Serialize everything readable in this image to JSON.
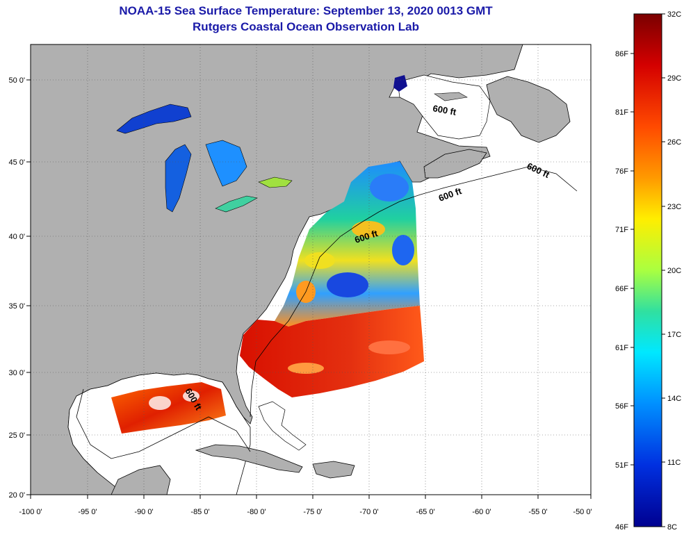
{
  "header": {
    "title": "NOAA-15 Sea Surface Temperature:  September 13, 2020 0013 GMT",
    "subtitle": "Rutgers Coastal Ocean Observation Lab"
  },
  "map": {
    "lon_range": [
      -100,
      -50
    ],
    "lat_range": [
      20,
      52
    ],
    "lon_ticks": [
      "-100 0'",
      "-95 0'",
      "-90 0'",
      "-85 0'",
      "-80 0'",
      "-75 0'",
      "-70 0'",
      "-65 0'",
      "-60 0'",
      "-55 0'",
      "-50 0'"
    ],
    "lat_ticks": [
      "20 0'",
      "25 0'",
      "30 0'",
      "35 0'",
      "40 0'",
      "45 0'",
      "50 0'"
    ],
    "contour_labels": [
      "600 ft",
      "600 ft",
      "600 ft",
      "600 ft",
      "600 ft"
    ],
    "colors": {
      "land": "#b0b0b0",
      "ocean": "#ffffff",
      "grid": "#333333"
    }
  },
  "colorbar": {
    "celsius_labels": [
      "32C",
      "29C",
      "26C",
      "23C",
      "20C",
      "17C",
      "14C",
      "11C",
      "8C"
    ],
    "fahrenheit_labels": [
      "86F",
      "81F",
      "76F",
      "71F",
      "66F",
      "61F",
      "56F",
      "51F",
      "46F"
    ],
    "min_c": 8,
    "max_c": 32,
    "stops": [
      "#7a0000",
      "#d40000",
      "#ff4a00",
      "#ff9a00",
      "#ffee00",
      "#aaff40",
      "#30e0a0",
      "#00e8ff",
      "#0090ff",
      "#0030e0",
      "#000090"
    ]
  }
}
